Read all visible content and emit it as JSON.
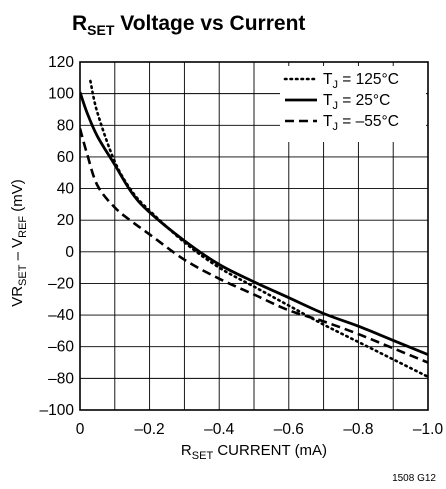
{
  "chart_data": {
    "type": "line",
    "title": "RSET Voltage vs Current",
    "title_parts": {
      "main": "R",
      "sub": "SET",
      "rest": " Voltage vs Current"
    },
    "xlabel": "RSET CURRENT (mA)",
    "xlabel_parts": {
      "main": "R",
      "sub": "SET",
      "rest": " CURRENT (mA)"
    },
    "ylabel": "VRSET – VREF (mV)",
    "ylabel_parts": {
      "a": "VR",
      "a_sub": "SET",
      "b": " – V",
      "b_sub": "REF",
      "c": " (mV)"
    },
    "xlim": [
      0,
      -1.0
    ],
    "ylim": [
      -100,
      120
    ],
    "xticks": [
      0,
      -0.2,
      -0.4,
      -0.6,
      -0.8,
      -1.0
    ],
    "xtick_labels": [
      "0",
      "–0.2",
      "–0.4",
      "–0.6",
      "–0.8",
      "–1.0"
    ],
    "yticks": [
      -100,
      -80,
      -60,
      -40,
      -20,
      0,
      20,
      40,
      60,
      80,
      100,
      120
    ],
    "ytick_labels": [
      "–100",
      "–80",
      "–60",
      "–40",
      "–20",
      "0",
      "20",
      "40",
      "60",
      "80",
      "100",
      "120"
    ],
    "x_minor_grid": true,
    "grid": true,
    "legend_position": "top-right",
    "figure_id": "1508 G12",
    "series": [
      {
        "name": "TJ = 125°C",
        "legend": {
          "main": "T",
          "sub": "J",
          "rest": " = 125°C"
        },
        "style": "dotted",
        "x": [
          -0.03,
          -0.05,
          -0.1,
          -0.15,
          -0.2,
          -0.3,
          -0.4,
          -0.5,
          -0.6,
          -0.7,
          -0.8,
          -0.9,
          -1.0
        ],
        "y": [
          108,
          88,
          57,
          38,
          26,
          6,
          -10,
          -22,
          -34,
          -46,
          -57,
          -68,
          -79
        ]
      },
      {
        "name": "TJ = 25°C",
        "legend": {
          "main": "T",
          "sub": "J",
          "rest": " = 25°C"
        },
        "style": "solid",
        "x": [
          0,
          -0.02,
          -0.05,
          -0.1,
          -0.15,
          -0.2,
          -0.3,
          -0.4,
          -0.5,
          -0.6,
          -0.7,
          -0.8,
          -0.9,
          -1.0
        ],
        "y": [
          101,
          88,
          73,
          55,
          37,
          25,
          7,
          -8,
          -19,
          -29,
          -39,
          -47,
          -56,
          -65
        ]
      },
      {
        "name": "TJ = –55°C",
        "legend": {
          "main": "T",
          "sub": "J",
          "rest": " = –55°C"
        },
        "style": "dashed",
        "x": [
          0,
          -0.02,
          -0.05,
          -0.1,
          -0.15,
          -0.2,
          -0.3,
          -0.4,
          -0.5,
          -0.6,
          -0.7,
          -0.8,
          -0.9,
          -1.0
        ],
        "y": [
          78,
          62,
          42,
          28,
          19,
          11,
          -5,
          -17,
          -27,
          -37,
          -44,
          -52,
          -61,
          -70
        ]
      }
    ]
  }
}
